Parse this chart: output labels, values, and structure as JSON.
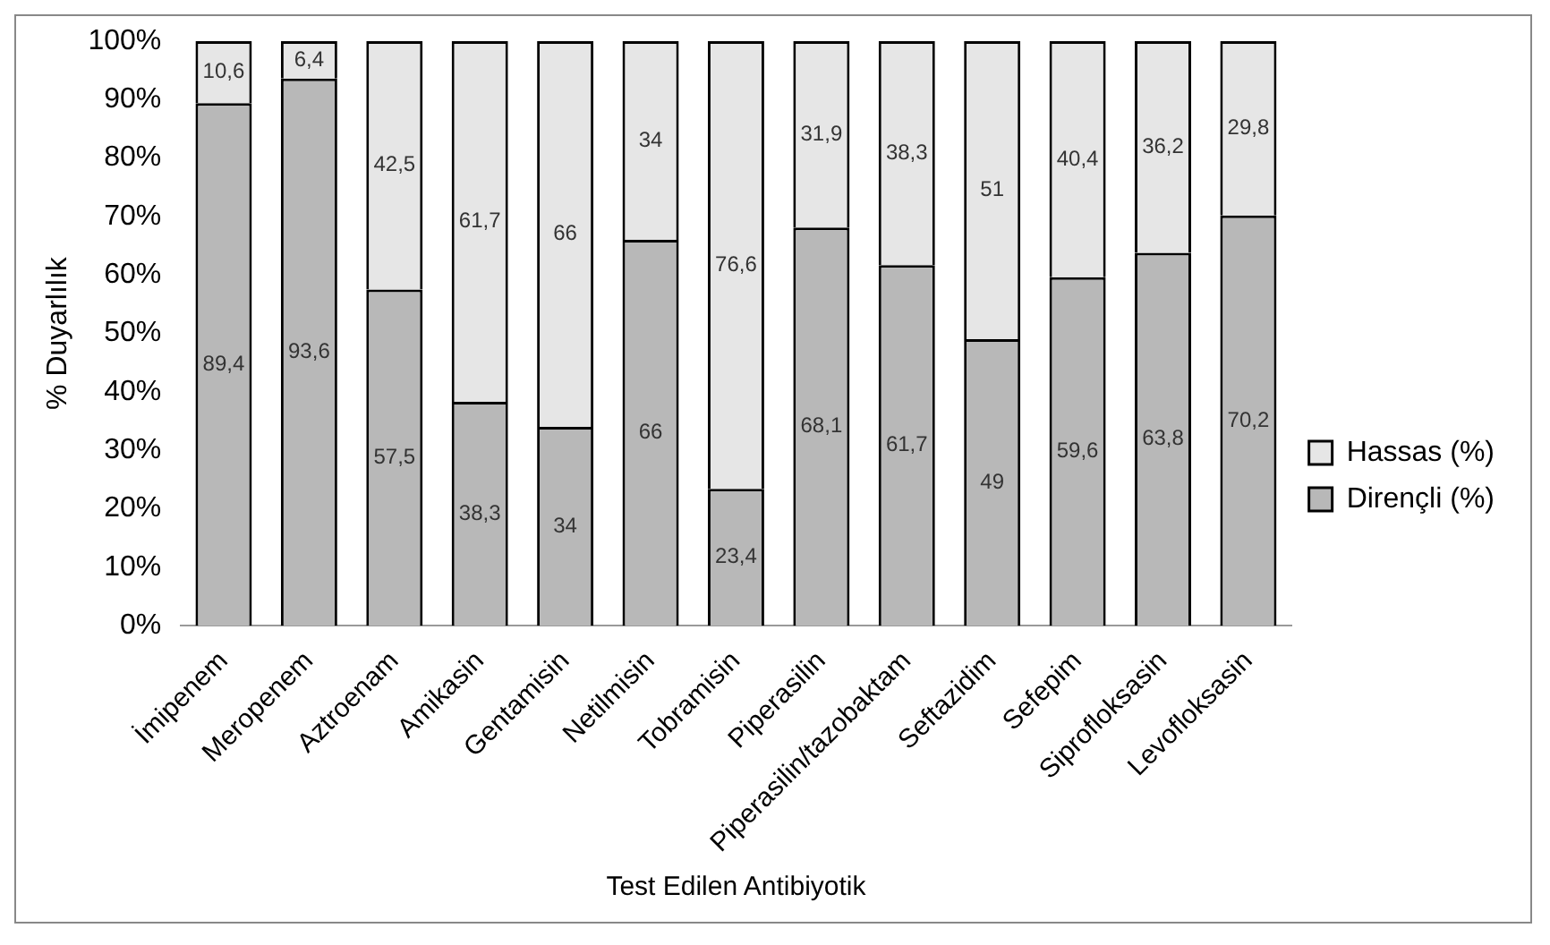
{
  "chart_data": {
    "type": "bar",
    "stacked": true,
    "xlabel": "Test Edilen Antibiyotik",
    "ylabel": "% Duyarlılık",
    "categories": [
      "İmipenem",
      "Meropenem",
      "Aztroenam",
      "Amikasin",
      "Gentamisin",
      "Netilmisin",
      "Tobramisin",
      "Piperasilin",
      "Piperasilin/tazobaktam",
      "Seftazidim",
      "Sefepim",
      "Siprofloksasin",
      "Levofloksasin"
    ],
    "series": [
      {
        "name": "Dirençli (%)",
        "color": "#b8b8b8",
        "values": [
          89.4,
          93.6,
          57.5,
          38.3,
          34,
          66,
          23.4,
          68.1,
          61.7,
          49,
          59.6,
          63.8,
          70.2
        ],
        "value_labels": [
          "89,4",
          "93,6",
          "57,5",
          "38,3",
          "34",
          "66",
          "23,4",
          "68,1",
          "61,7",
          "49",
          "59,6",
          "63,8",
          "70,2"
        ]
      },
      {
        "name": "Hassas (%)",
        "color": "#e6e6e6",
        "values": [
          10.6,
          6.4,
          42.5,
          61.7,
          66,
          34,
          76.6,
          31.9,
          38.3,
          51,
          40.4,
          36.2,
          29.8
        ],
        "value_labels": [
          "10,6",
          "6,4",
          "42,5",
          "61,7",
          "66",
          "34",
          "76,6",
          "31,9",
          "38,3",
          "51",
          "40,4",
          "36,2",
          "29,8"
        ]
      }
    ],
    "ylim": [
      0,
      100
    ],
    "yticks": [
      {
        "value": 0,
        "label": "0%"
      },
      {
        "value": 10,
        "label": "10%"
      },
      {
        "value": 20,
        "label": "20%"
      },
      {
        "value": 30,
        "label": "30%"
      },
      {
        "value": 40,
        "label": "40%"
      },
      {
        "value": 50,
        "label": "50%"
      },
      {
        "value": 60,
        "label": "60%"
      },
      {
        "value": 70,
        "label": "70%"
      },
      {
        "value": 80,
        "label": "80%"
      },
      {
        "value": 90,
        "label": "90%"
      },
      {
        "value": 100,
        "label": "100%"
      }
    ],
    "grid": false,
    "legend": "right"
  }
}
